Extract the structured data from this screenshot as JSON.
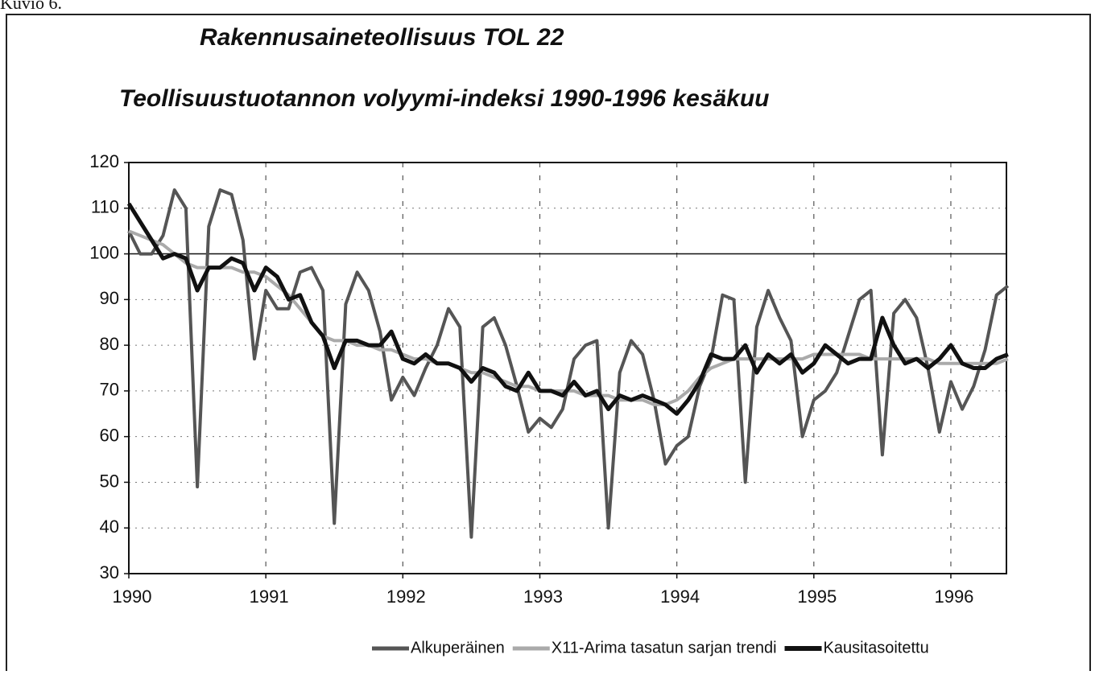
{
  "caption": "Kuvio 6.",
  "chart_data": {
    "type": "line",
    "title": "Rakennusaineteollisuus TOL 22",
    "subtitle": "Teollisuustuotannon volyymi-indeksi 1990-1996 kesäkuu",
    "categories": [
      "1990",
      null,
      null,
      null,
      null,
      null,
      null,
      null,
      null,
      null,
      null,
      null,
      "1991",
      null,
      null,
      null,
      null,
      null,
      null,
      null,
      null,
      null,
      null,
      null,
      "1992",
      null,
      null,
      null,
      null,
      null,
      null,
      null,
      null,
      null,
      null,
      null,
      "1993",
      null,
      null,
      null,
      null,
      null,
      null,
      null,
      null,
      null,
      null,
      null,
      "1994",
      null,
      null,
      null,
      null,
      null,
      null,
      null,
      null,
      null,
      null,
      null,
      "1995",
      null,
      null,
      null,
      null,
      null,
      null,
      null,
      null,
      null,
      null,
      null,
      "1996",
      null,
      null,
      null,
      null,
      null
    ],
    "series": [
      {
        "name": "Alkuperäinen",
        "color": "#555555",
        "width": 4,
        "values": [
          105,
          100,
          100,
          104,
          114,
          110,
          49,
          106,
          114,
          113,
          103,
          77,
          92,
          88,
          88,
          96,
          97,
          92,
          41,
          89,
          96,
          92,
          83,
          68,
          73,
          69,
          75,
          80,
          88,
          84,
          38,
          84,
          86,
          80,
          71,
          61,
          64,
          62,
          66,
          77,
          80,
          81,
          40,
          74,
          81,
          78,
          68,
          54,
          58,
          60,
          71,
          77,
          91,
          90,
          50,
          84,
          92,
          86,
          81,
          60,
          68,
          70,
          74,
          82,
          90,
          92,
          56,
          87,
          90,
          86,
          75,
          61,
          72,
          66,
          71,
          79,
          91,
          93
        ]
      },
      {
        "name": "X11-Arima tasatun sarjan trendi",
        "color": "#aaaaaa",
        "width": 4,
        "values": [
          105,
          104,
          103,
          102,
          100,
          98,
          97,
          97,
          97,
          97,
          96,
          96,
          95,
          93,
          91,
          88,
          85,
          82,
          81,
          81,
          80,
          80,
          79,
          79,
          78,
          77,
          77,
          76,
          76,
          75,
          74,
          74,
          73,
          72,
          71,
          71,
          70,
          70,
          70,
          70,
          69,
          69,
          69,
          68,
          68,
          68,
          67,
          67,
          68,
          70,
          73,
          75,
          76,
          77,
          77,
          77,
          77,
          77,
          77,
          77,
          78,
          78,
          78,
          78,
          78,
          77,
          77,
          77,
          77,
          77,
          77,
          76,
          76,
          76,
          76,
          76,
          76,
          77
        ]
      },
      {
        "name": "Kausitasoitettu",
        "color": "#111111",
        "width": 5,
        "values": [
          111,
          107,
          103,
          99,
          100,
          99,
          92,
          97,
          97,
          99,
          98,
          92,
          97,
          95,
          90,
          91,
          85,
          82,
          75,
          81,
          81,
          80,
          80,
          83,
          77,
          76,
          78,
          76,
          76,
          75,
          72,
          75,
          74,
          71,
          70,
          74,
          70,
          70,
          69,
          72,
          69,
          70,
          66,
          69,
          68,
          69,
          68,
          67,
          65,
          68,
          72,
          78,
          77,
          77,
          80,
          74,
          78,
          76,
          78,
          74,
          76,
          80,
          78,
          76,
          77,
          77,
          86,
          80,
          76,
          77,
          75,
          77,
          80,
          76,
          75,
          75,
          77,
          78
        ]
      }
    ],
    "ylim": [
      30,
      120
    ],
    "yticks": [
      30,
      40,
      50,
      60,
      70,
      80,
      90,
      100,
      110,
      120
    ],
    "grid": true,
    "reference_line": 100,
    "legend": "bottom"
  }
}
